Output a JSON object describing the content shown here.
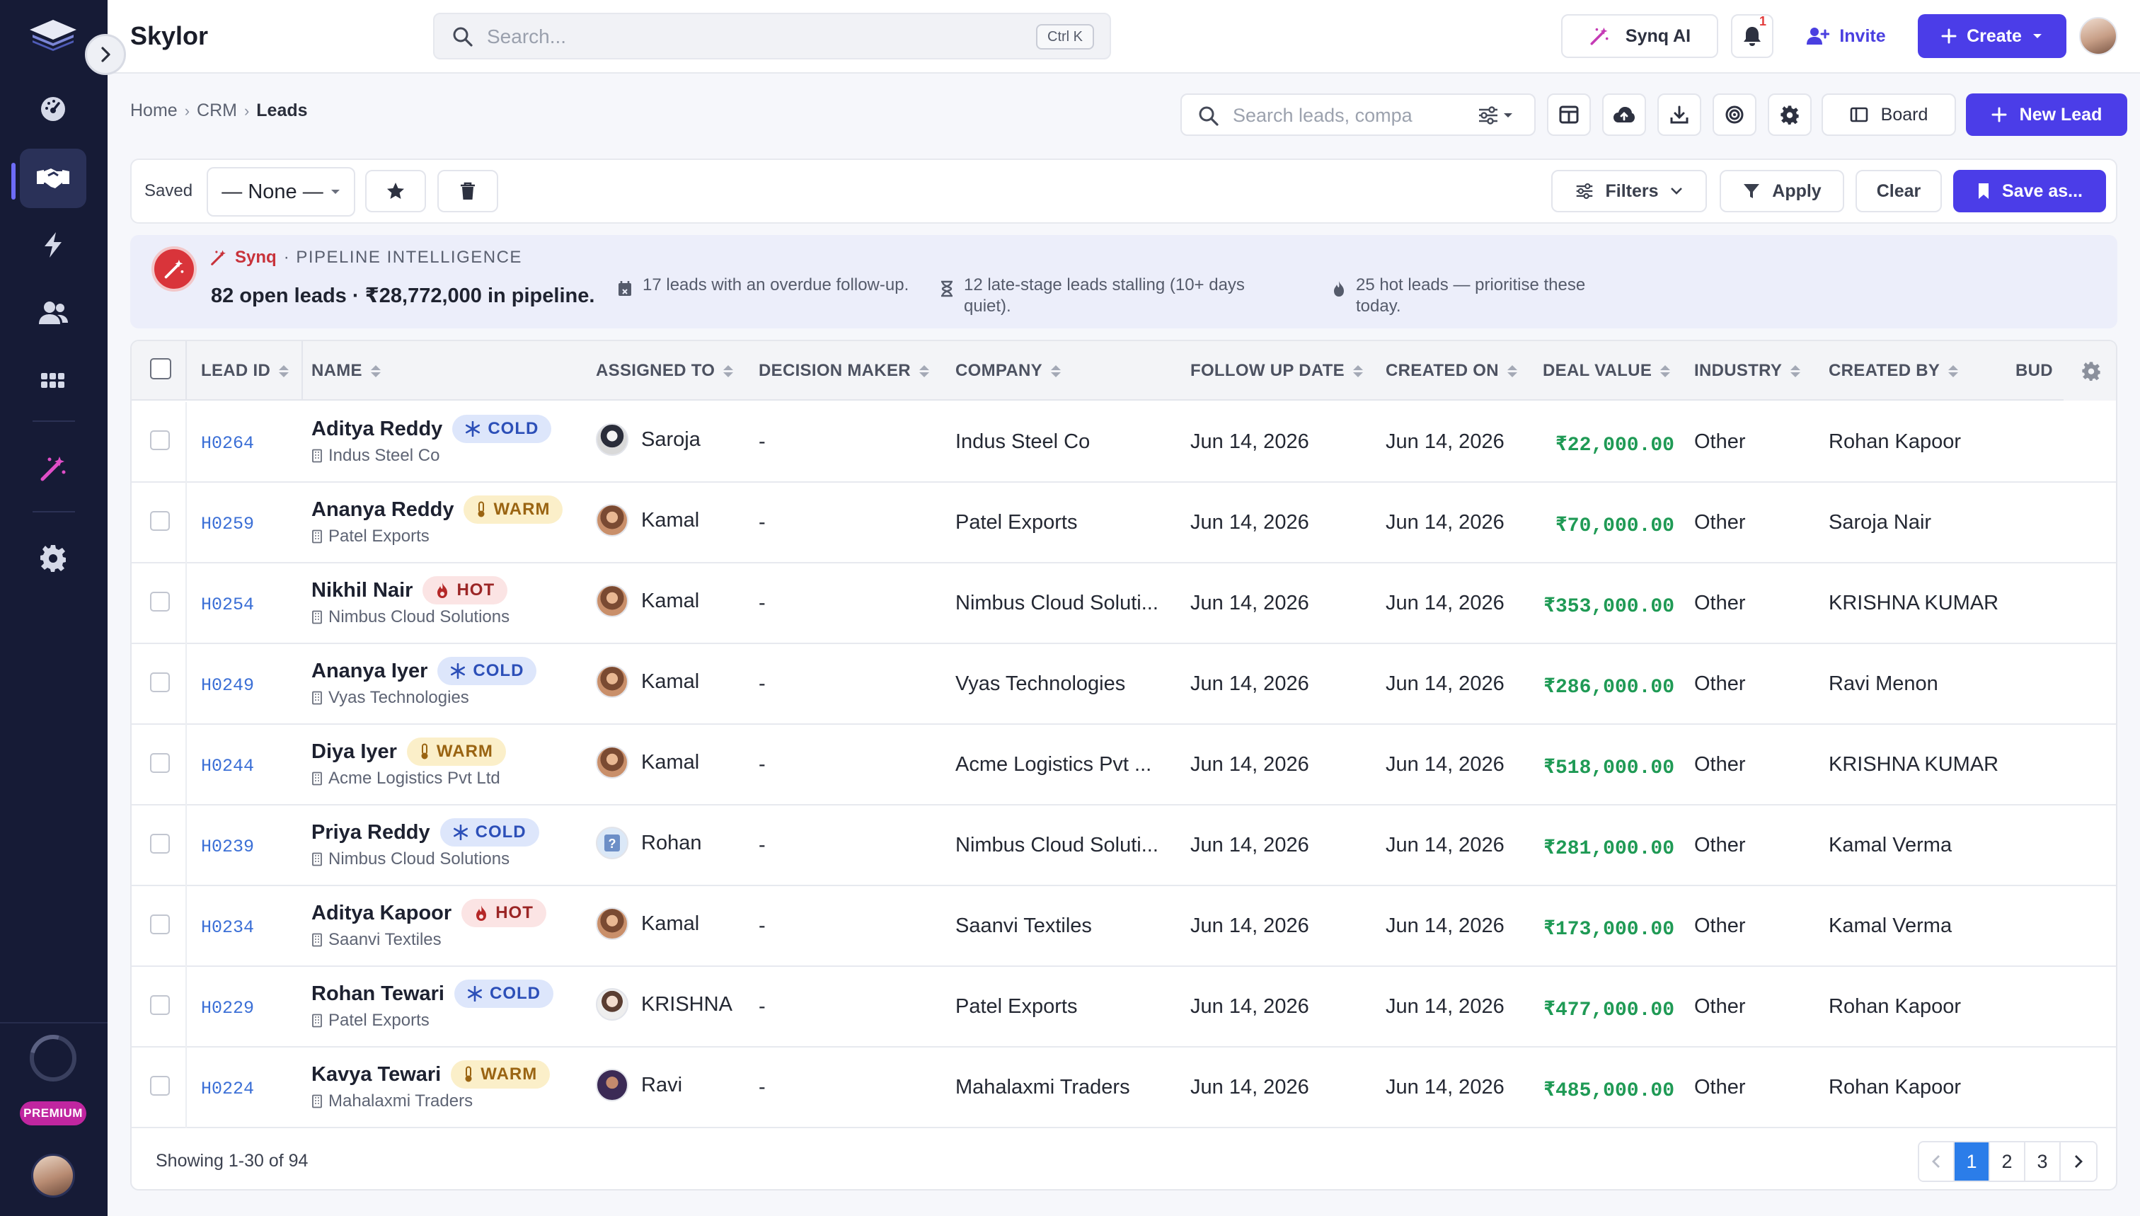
{
  "app": {
    "brand": "Skylor"
  },
  "colors": {
    "accent": "#4b3de8",
    "sidebar": "#161b36",
    "money": "#1f9a55",
    "link": "#3b6fd6"
  },
  "topbar": {
    "search_placeholder": "Search...",
    "shortcut": "Ctrl K",
    "synq_ai": "Synq AI",
    "notification_count": "1",
    "invite": "Invite",
    "create": "Create"
  },
  "sidebar": {
    "items": [
      {
        "icon": "dashboard-icon"
      },
      {
        "icon": "handshake-icon",
        "active": true
      },
      {
        "icon": "lightning-icon"
      },
      {
        "icon": "users-icon"
      },
      {
        "icon": "apps-grid-icon"
      },
      {
        "icon": "magic-wand-icon"
      },
      {
        "icon": "gear-icon"
      }
    ],
    "premium": "PREMIUM"
  },
  "breadcrumb": {
    "home": "Home",
    "crm": "CRM",
    "current": "Leads"
  },
  "toolbar": {
    "search_placeholder": "Search leads, compa",
    "board": "Board",
    "new_lead": "New Lead"
  },
  "saved": {
    "label": "Saved",
    "selected": "— None —",
    "filters": "Filters",
    "apply": "Apply",
    "clear": "Clear",
    "save_as": "Save as..."
  },
  "synq": {
    "name": "Synq",
    "label": "· PIPELINE INTELLIGENCE",
    "summary": "82 open leads · ₹28,772,000 in pipeline.",
    "notes": [
      {
        "icon": "calendar-icon",
        "text": "17 leads with an overdue follow-up."
      },
      {
        "icon": "hourglass-icon",
        "text": "12 late-stage leads stalling (10+ days quiet)."
      },
      {
        "icon": "flame-icon",
        "text": "25 hot leads — prioritise these today."
      }
    ]
  },
  "table": {
    "columns": [
      "LEAD ID",
      "NAME",
      "ASSIGNED TO",
      "DECISION MAKER",
      "COMPANY",
      "FOLLOW UP DATE",
      "CREATED ON",
      "DEAL VALUE",
      "INDUSTRY",
      "CREATED BY",
      "BUD"
    ],
    "rows": [
      {
        "id": "H0264",
        "name": "Aditya Reddy",
        "temp": "COLD",
        "company_sub": "Indus Steel Co",
        "assigned": "Saroja",
        "dm": "-",
        "company": "Indus Steel Co",
        "follow": "Jun 14, 2026",
        "created": "Jun 14, 2026",
        "deal": "₹22,000.00",
        "industry": "Other",
        "created_by": "Rohan Kapoor"
      },
      {
        "id": "H0259",
        "name": "Ananya Reddy",
        "temp": "WARM",
        "company_sub": "Patel Exports",
        "assigned": "Kamal",
        "dm": "-",
        "company": "Patel Exports",
        "follow": "Jun 14, 2026",
        "created": "Jun 14, 2026",
        "deal": "₹70,000.00",
        "industry": "Other",
        "created_by": "Saroja Nair"
      },
      {
        "id": "H0254",
        "name": "Nikhil Nair",
        "temp": "HOT",
        "company_sub": "Nimbus Cloud Solutions",
        "assigned": "Kamal",
        "dm": "-",
        "company": "Nimbus Cloud Soluti...",
        "follow": "Jun 14, 2026",
        "created": "Jun 14, 2026",
        "deal": "₹353,000.00",
        "industry": "Other",
        "created_by": "KRISHNA KUMAR"
      },
      {
        "id": "H0249",
        "name": "Ananya Iyer",
        "temp": "COLD",
        "company_sub": "Vyas Technologies",
        "assigned": "Kamal",
        "dm": "-",
        "company": "Vyas Technologies",
        "follow": "Jun 14, 2026",
        "created": "Jun 14, 2026",
        "deal": "₹286,000.00",
        "industry": "Other",
        "created_by": "Ravi Menon"
      },
      {
        "id": "H0244",
        "name": "Diya Iyer",
        "temp": "WARM",
        "company_sub": "Acme Logistics Pvt Ltd",
        "assigned": "Kamal",
        "dm": "-",
        "company": "Acme Logistics Pvt ...",
        "follow": "Jun 14, 2026",
        "created": "Jun 14, 2026",
        "deal": "₹518,000.00",
        "industry": "Other",
        "created_by": "KRISHNA KUMAR"
      },
      {
        "id": "H0239",
        "name": "Priya Reddy",
        "temp": "COLD",
        "company_sub": "Nimbus Cloud Solutions",
        "assigned": "Rohan",
        "dm": "-",
        "company": "Nimbus Cloud Soluti...",
        "follow": "Jun 14, 2026",
        "created": "Jun 14, 2026",
        "deal": "₹281,000.00",
        "industry": "Other",
        "created_by": "Kamal Verma"
      },
      {
        "id": "H0234",
        "name": "Aditya Kapoor",
        "temp": "HOT",
        "company_sub": "Saanvi Textiles",
        "assigned": "Kamal",
        "dm": "-",
        "company": "Saanvi Textiles",
        "follow": "Jun 14, 2026",
        "created": "Jun 14, 2026",
        "deal": "₹173,000.00",
        "industry": "Other",
        "created_by": "Kamal Verma"
      },
      {
        "id": "H0229",
        "name": "Rohan Tewari",
        "temp": "COLD",
        "company_sub": "Patel Exports",
        "assigned": "KRISHNA",
        "dm": "-",
        "company": "Patel Exports",
        "follow": "Jun 14, 2026",
        "created": "Jun 14, 2026",
        "deal": "₹477,000.00",
        "industry": "Other",
        "created_by": "Rohan Kapoor"
      },
      {
        "id": "H0224",
        "name": "Kavya Tewari",
        "temp": "WARM",
        "company_sub": "Mahalaxmi Traders",
        "assigned": "Ravi",
        "dm": "-",
        "company": "Mahalaxmi Traders",
        "follow": "Jun 14, 2026",
        "created": "Jun 14, 2026",
        "deal": "₹485,000.00",
        "industry": "Other",
        "created_by": "Rohan Kapoor"
      }
    ]
  },
  "footer": {
    "showing": "Showing 1-30 of 94",
    "pages": [
      "1",
      "2",
      "3"
    ],
    "current_page": "1"
  }
}
